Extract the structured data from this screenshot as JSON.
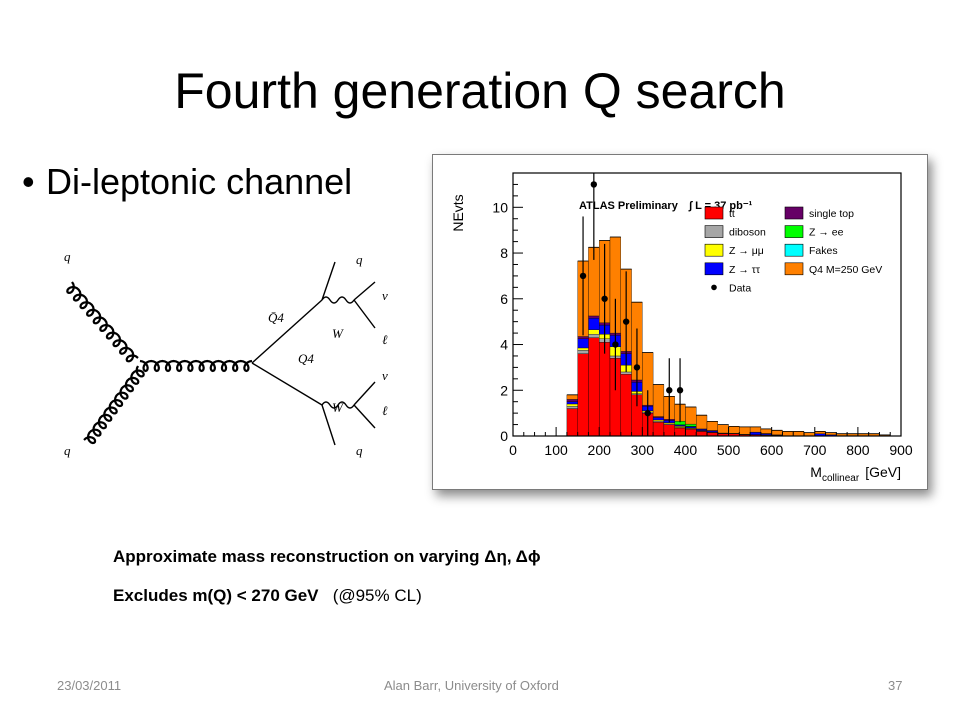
{
  "slide": {
    "title": "Fourth generation Q search",
    "bullet": "Di-leptonic channel",
    "note1": "Approximate mass reconstruction on varying Δη,  Δϕ",
    "note2_bold": "Excludes m(Q)  < 270 GeV",
    "note2_paren": "(@95% CL)",
    "footer_date": "23/03/2011",
    "footer_author": "Alan Barr, University of Oxford",
    "footer_page": "37"
  },
  "diagram": {
    "labels": {
      "q_top_left": "q",
      "q_bottom_left": "q",
      "q_top_right": "q",
      "q_bottom_right": "q",
      "qbar4": "Q̄4",
      "q4": "Q4",
      "w_top": "W",
      "w_bottom": "W",
      "nu_top": "ν",
      "l_top": "ℓ",
      "nu_bottom": "ν",
      "l_bottom": "ℓ"
    }
  },
  "chart_data": {
    "type": "bar",
    "stacked": true,
    "bin_edges": [
      0,
      25,
      50,
      75,
      100,
      125,
      150,
      175,
      200,
      225,
      250,
      275,
      300,
      325,
      350,
      375,
      400,
      425,
      450,
      475,
      500,
      525,
      550,
      575,
      600,
      625,
      650,
      675,
      700,
      725,
      750,
      775,
      800,
      825,
      850,
      875,
      900
    ],
    "series": [
      {
        "name": "tt̄",
        "color": "#ff0000",
        "values": [
          0,
          0,
          0,
          0,
          0,
          1.2,
          3.6,
          4.3,
          4.1,
          3.4,
          2.7,
          1.8,
          1.0,
          0.6,
          0.5,
          0.35,
          0.3,
          0.2,
          0.15,
          0.1,
          0.1,
          0.06,
          0.05,
          0.04,
          0.03,
          0,
          0,
          0,
          0,
          0,
          0,
          0,
          0,
          0,
          0,
          0
        ]
      },
      {
        "name": "diboson",
        "color": "#a6a6a6",
        "values": [
          0,
          0,
          0,
          0,
          0,
          0.1,
          0.15,
          0.15,
          0.15,
          0.1,
          0.1,
          0.05,
          0.05,
          0.05,
          0.03,
          0.02,
          0.02,
          0.02,
          0.02,
          0.01,
          0.01,
          0.01,
          0.01,
          0.01,
          0.01,
          0,
          0,
          0,
          0,
          0,
          0,
          0,
          0,
          0,
          0,
          0
        ]
      },
      {
        "name": "Z → μμ",
        "color": "#ffff00",
        "values": [
          0,
          0,
          0,
          0,
          0,
          0.1,
          0.1,
          0.2,
          0.2,
          0.4,
          0.3,
          0.1,
          0.05,
          0.05,
          0.05,
          0.05,
          0.03,
          0.02,
          0,
          0,
          0,
          0,
          0,
          0,
          0,
          0,
          0,
          0,
          0,
          0,
          0,
          0,
          0,
          0,
          0,
          0
        ]
      },
      {
        "name": "Z → ττ",
        "color": "#0000ff",
        "values": [
          0,
          0,
          0,
          0,
          0,
          0.1,
          0.4,
          0.5,
          0.4,
          0.5,
          0.5,
          0.4,
          0.2,
          0.1,
          0.1,
          0.05,
          0.05,
          0.05,
          0.05,
          0,
          0,
          0,
          0.1,
          0.05,
          0,
          0,
          0,
          0,
          0.1,
          0.05,
          0,
          0,
          0,
          0,
          0,
          0
        ]
      },
      {
        "name": "single top",
        "color": "#660066",
        "values": [
          0,
          0,
          0,
          0,
          0,
          0.1,
          0.1,
          0.1,
          0.1,
          0.1,
          0.1,
          0.1,
          0.05,
          0.05,
          0.05,
          0.02,
          0.02,
          0.02,
          0.02,
          0.02,
          0.01,
          0.01,
          0.01,
          0.01,
          0.01,
          0,
          0,
          0,
          0,
          0,
          0,
          0,
          0,
          0,
          0,
          0
        ]
      },
      {
        "name": "Z → ee",
        "color": "#00ff00",
        "values": [
          0,
          0,
          0,
          0,
          0,
          0,
          0,
          0,
          0,
          0,
          0,
          0,
          0,
          0,
          0,
          0.15,
          0.1,
          0,
          0,
          0,
          0,
          0,
          0,
          0,
          0,
          0,
          0,
          0,
          0,
          0,
          0,
          0,
          0,
          0,
          0,
          0
        ]
      },
      {
        "name": "Fakes",
        "color": "#00ffff",
        "values": [
          0,
          0,
          0,
          0,
          0,
          0,
          0,
          0,
          0,
          0,
          0,
          0,
          0,
          0,
          0,
          0,
          0,
          0,
          0,
          0,
          0,
          0,
          0,
          0,
          0,
          0,
          0,
          0,
          0,
          0,
          0,
          0,
          0,
          0,
          0,
          0
        ]
      },
      {
        "name": "Q4 M=250 GeV",
        "color": "#ff8000",
        "values": [
          0,
          0,
          0,
          0,
          0,
          0.2,
          3.3,
          3.0,
          3.6,
          4.2,
          3.6,
          3.4,
          2.3,
          1.4,
          1.0,
          0.75,
          0.75,
          0.6,
          0.4,
          0.37,
          0.3,
          0.32,
          0.23,
          0.2,
          0.2,
          0.2,
          0.2,
          0.15,
          0.1,
          0.1,
          0.1,
          0.1,
          0.1,
          0.1,
          0.05,
          0
        ]
      }
    ],
    "data": {
      "name": "Data",
      "x": [
        162.5,
        187.5,
        212.5,
        237.5,
        262.5,
        287.5,
        312.5,
        362.5,
        387.5
      ],
      "y": [
        7,
        11,
        6,
        4,
        5,
        3,
        1,
        2,
        2
      ],
      "yerr": [
        2.6,
        3.3,
        2.4,
        2.0,
        2.2,
        1.7,
        1.0,
        1.4,
        1.4
      ]
    },
    "title": "ATLAS Preliminary",
    "lumi": "∫ L = 37 pb⁻¹",
    "xlabel": "M",
    "xlabel_sub": "collinear",
    "xlabel_unit": "[GeV]",
    "ylabel": "NEvts",
    "xlim": [
      0,
      900
    ],
    "ylim": [
      0,
      11.5
    ],
    "x_ticks": [
      0,
      100,
      200,
      300,
      400,
      500,
      600,
      700,
      800,
      900
    ],
    "y_ticks": [
      0,
      2,
      4,
      6,
      8,
      10
    ],
    "legend_position": "top-right",
    "legend": [
      {
        "label": "tt̄",
        "color": "#ff0000",
        "kind": "box"
      },
      {
        "label": "single top",
        "color": "#660066",
        "kind": "box"
      },
      {
        "label": "diboson",
        "color": "#a6a6a6",
        "kind": "box"
      },
      {
        "label": "Z → ee",
        "color": "#00ff00",
        "kind": "box"
      },
      {
        "label": "Z → μμ",
        "color": "#ffff00",
        "kind": "box"
      },
      {
        "label": "Fakes",
        "color": "#00ffff",
        "kind": "box"
      },
      {
        "label": "Z → ττ",
        "color": "#0000ff",
        "kind": "box"
      },
      {
        "label": "Q4 M=250 GeV",
        "color": "#ff8000",
        "kind": "box"
      },
      {
        "label": "Data",
        "color": "#000000",
        "kind": "dot"
      }
    ]
  }
}
